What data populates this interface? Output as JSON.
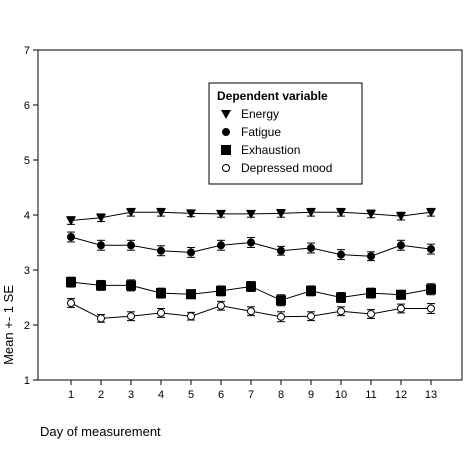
{
  "chart_data": {
    "type": "line",
    "xlabel": "Day of measurement",
    "ylabel": "Mean +- 1 SE",
    "ylim": [
      1,
      7
    ],
    "yticks": [
      1,
      2,
      3,
      4,
      5,
      6,
      7
    ],
    "categories": [
      "1",
      "2",
      "3",
      "4",
      "5",
      "6",
      "7",
      "8",
      "9",
      "10",
      "11",
      "12",
      "13"
    ],
    "grid": false,
    "legend": {
      "title": "Dependent variable",
      "placement": "top-right-inside"
    },
    "series": [
      {
        "name": "Energy",
        "marker": "triangle-down",
        "values": [
          3.9,
          3.95,
          4.05,
          4.05,
          4.03,
          4.02,
          4.02,
          4.03,
          4.05,
          4.05,
          4.02,
          3.98,
          4.05
        ],
        "errors": [
          0.07,
          0.07,
          0.07,
          0.07,
          0.06,
          0.06,
          0.06,
          0.07,
          0.07,
          0.07,
          0.07,
          0.07,
          0.07
        ]
      },
      {
        "name": "Fatigue",
        "marker": "circle-filled",
        "values": [
          3.6,
          3.45,
          3.45,
          3.35,
          3.32,
          3.45,
          3.5,
          3.35,
          3.4,
          3.28,
          3.25,
          3.45,
          3.38
        ],
        "errors": [
          0.09,
          0.09,
          0.09,
          0.09,
          0.09,
          0.09,
          0.09,
          0.08,
          0.09,
          0.09,
          0.08,
          0.09,
          0.09
        ]
      },
      {
        "name": "Exhaustion",
        "marker": "square-filled",
        "values": [
          2.78,
          2.72,
          2.72,
          2.58,
          2.56,
          2.62,
          2.7,
          2.45,
          2.62,
          2.5,
          2.58,
          2.55,
          2.65
        ],
        "errors": [
          0.09,
          0.09,
          0.1,
          0.09,
          0.08,
          0.09,
          0.09,
          0.1,
          0.09,
          0.09,
          0.09,
          0.08,
          0.1
        ]
      },
      {
        "name": "Depressed mood",
        "marker": "circle-open",
        "values": [
          2.4,
          2.12,
          2.16,
          2.22,
          2.16,
          2.35,
          2.25,
          2.15,
          2.16,
          2.25,
          2.2,
          2.3,
          2.3
        ],
        "errors": [
          0.08,
          0.07,
          0.08,
          0.08,
          0.07,
          0.08,
          0.08,
          0.09,
          0.08,
          0.08,
          0.08,
          0.08,
          0.09
        ]
      }
    ]
  }
}
